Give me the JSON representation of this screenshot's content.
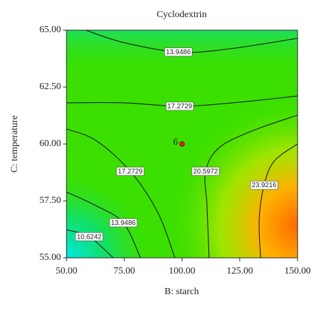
{
  "chart_data": {
    "type": "contour",
    "title": "Cyclodextrin",
    "xlabel": "B: starch",
    "ylabel": "C: temperature",
    "xlim": [
      50,
      150
    ],
    "xticks": [
      {
        "value": 50,
        "label": "50.00"
      },
      {
        "value": 75,
        "label": "75.00"
      },
      {
        "value": 100,
        "label": "100.00"
      },
      {
        "value": 125,
        "label": "125.00"
      },
      {
        "value": 150,
        "label": "150.00"
      }
    ],
    "ylim": [
      55,
      65
    ],
    "yticks": [
      {
        "value": 55,
        "label": "55.00"
      },
      {
        "value": 57.5,
        "label": "57.50"
      },
      {
        "value": 60,
        "label": "60.00"
      },
      {
        "value": 62.5,
        "label": "62.50"
      },
      {
        "value": 65,
        "label": "65.00"
      }
    ],
    "contours": [
      {
        "level": 13.9486,
        "x": [
          58.3,
          74.6,
          98.4,
          119.1,
          150
        ],
        "y": [
          65.0,
          64.46,
          64.04,
          64.16,
          64.64
        ]
      },
      {
        "level": 17.2729,
        "x": [
          50,
          74.6,
          99,
          122.1,
          150
        ],
        "y": [
          61.81,
          61.81,
          61.66,
          61.81,
          62.11
        ]
      },
      {
        "level": 20.5972,
        "x": [
          150,
          131,
          116.2,
          110.2,
          110.8,
          111.7
        ],
        "y": [
          61.27,
          60.6,
          59.85,
          58.8,
          57.29,
          55
        ]
      },
      {
        "level": 23.9216,
        "x": [
          150,
          139.9,
          135.5,
          133.4,
          134
        ],
        "y": [
          60,
          59.25,
          58.19,
          56.69,
          55
        ]
      },
      {
        "level": 17.2729,
        "x": [
          50,
          62.8,
          77.6,
          89.5,
          96.9
        ],
        "y": [
          60.66,
          60.15,
          58.8,
          56.99,
          55
        ]
      },
      {
        "level": 13.9486,
        "x": [
          50,
          62.8,
          74.6,
          82
        ],
        "y": [
          57.89,
          57.29,
          56.54,
          55
        ]
      },
      {
        "level": 10.6242,
        "x": [
          50,
          59.8,
          70.2
        ],
        "y": [
          56.23,
          55.93,
          55
        ]
      }
    ],
    "design_point": {
      "x": 100,
      "y": 60,
      "label": "6",
      "color": "#e0201a"
    },
    "line_color": "#1a1a1a"
  }
}
